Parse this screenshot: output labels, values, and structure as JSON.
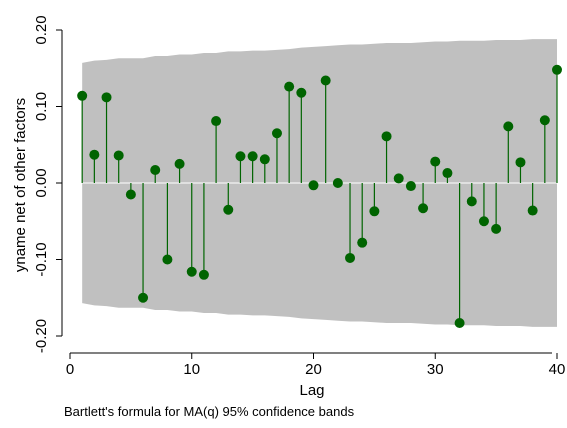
{
  "chart_data": {
    "type": "stem",
    "ylabel": "yname net of other factors",
    "xlabel": "Lag",
    "note": "Bartlett's formula for MA(q) 95% confidence bands",
    "xlim": [
      0,
      40
    ],
    "ylim": [
      -0.2,
      0.2
    ],
    "xticks": [
      0,
      10,
      20,
      30,
      40
    ],
    "yticks": [
      -0.2,
      -0.1,
      0.0,
      0.1,
      0.2
    ],
    "ytick_labels": [
      "-0.20",
      "-0.10",
      "0.00",
      "0.10",
      "0.20"
    ],
    "lags": [
      1,
      2,
      3,
      4,
      5,
      6,
      7,
      8,
      9,
      10,
      11,
      12,
      13,
      14,
      15,
      16,
      17,
      18,
      19,
      20,
      21,
      22,
      23,
      24,
      25,
      26,
      27,
      28,
      29,
      30,
      31,
      32,
      33,
      34,
      35,
      36,
      37,
      38,
      39,
      40
    ],
    "values": [
      0.114,
      0.037,
      0.112,
      0.036,
      -0.015,
      -0.15,
      0.017,
      -0.1,
      0.025,
      -0.116,
      -0.12,
      0.081,
      -0.035,
      0.035,
      0.035,
      0.031,
      0.065,
      0.126,
      0.118,
      -0.003,
      0.134,
      0.0,
      -0.098,
      -0.078,
      -0.037,
      0.061,
      0.006,
      -0.004,
      -0.033,
      0.028,
      0.013,
      -0.183,
      -0.024,
      -0.05,
      -0.06,
      0.074,
      0.027,
      -0.036,
      0.082,
      0.148
    ],
    "confidence_band": {
      "lags": [
        1,
        2,
        3,
        4,
        5,
        6,
        7,
        8,
        9,
        10,
        11,
        12,
        13,
        14,
        15,
        16,
        17,
        18,
        19,
        20,
        21,
        22,
        23,
        24,
        25,
        26,
        27,
        28,
        29,
        30,
        31,
        32,
        33,
        34,
        35,
        36,
        37,
        38,
        39,
        40
      ],
      "upper": [
        0.157,
        0.16,
        0.161,
        0.163,
        0.163,
        0.163,
        0.166,
        0.166,
        0.168,
        0.168,
        0.17,
        0.17,
        0.172,
        0.172,
        0.173,
        0.173,
        0.174,
        0.175,
        0.177,
        0.178,
        0.179,
        0.18,
        0.181,
        0.181,
        0.182,
        0.183,
        0.183,
        0.183,
        0.184,
        0.185,
        0.185,
        0.186,
        0.186,
        0.186,
        0.187,
        0.187,
        0.187,
        0.188,
        0.188,
        0.188
      ]
    },
    "colors": {
      "band": "#c0c0c0",
      "stem": "#006400",
      "marker": "#006400",
      "zero_line": "#ffffff"
    },
    "grid": false
  }
}
